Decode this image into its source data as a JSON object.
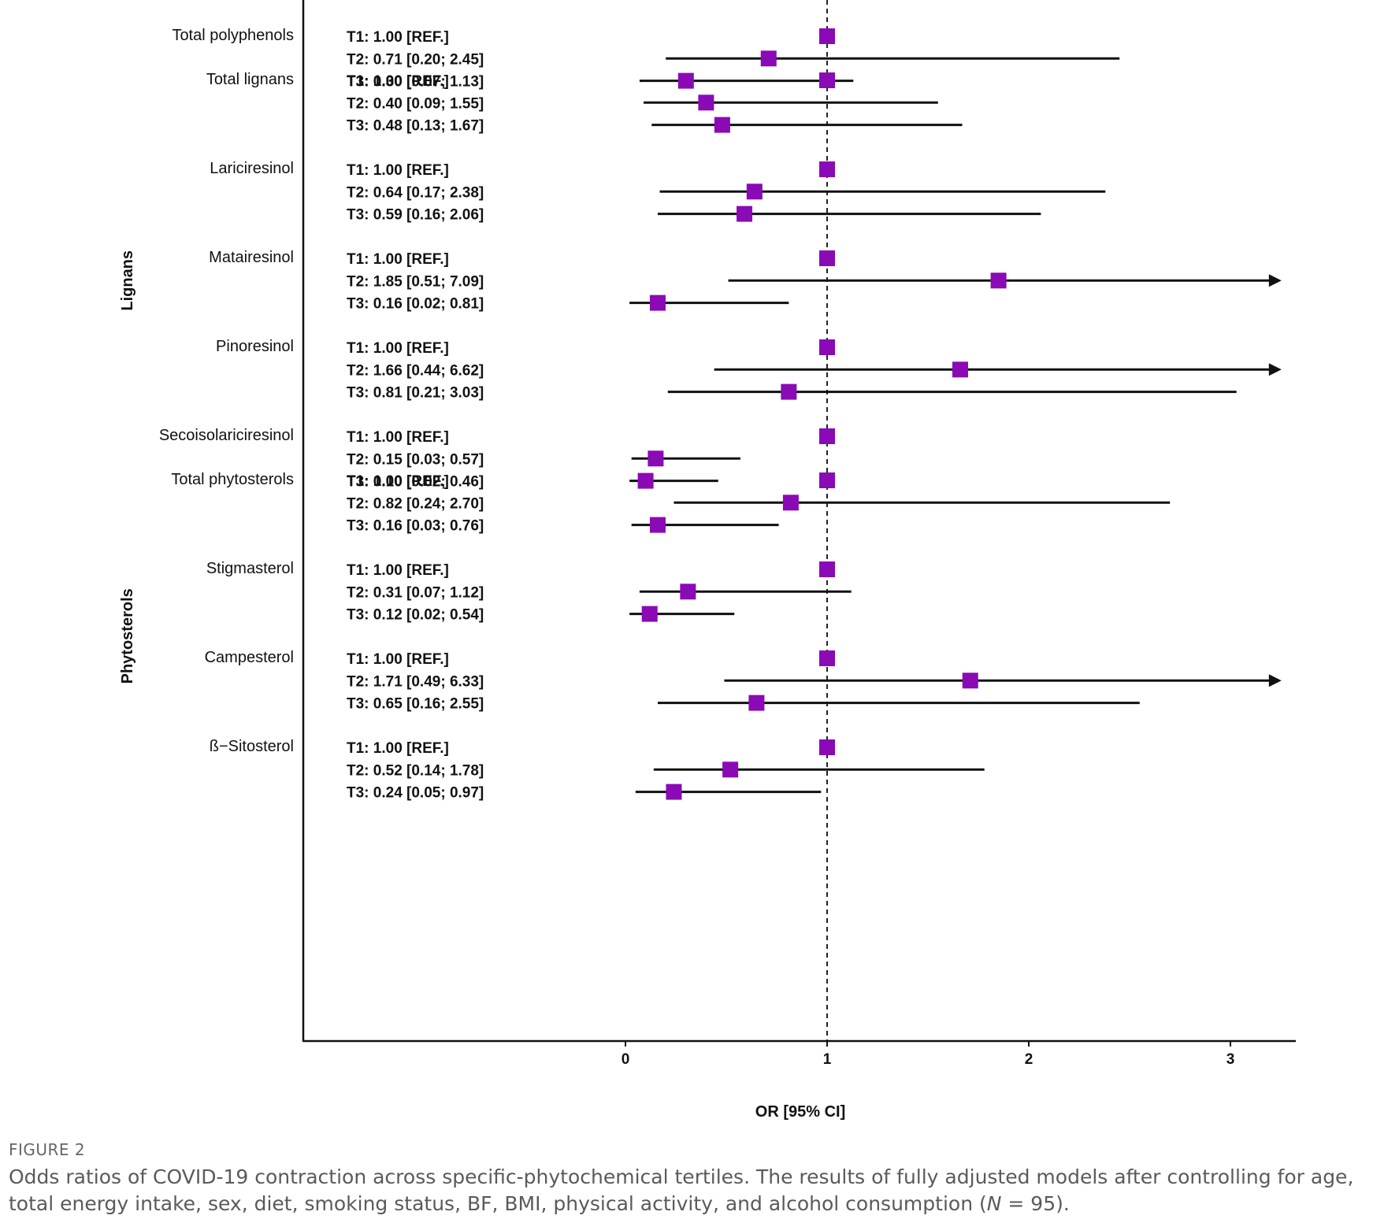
{
  "chart_data": {
    "type": "forest",
    "xlabel": "OR [95% CI]",
    "x_ticks": [
      0,
      1,
      2,
      3
    ],
    "xlim": [
      -1.6,
      3.3
    ],
    "reference_line": 1,
    "point_color": "#8a0ab5",
    "groups": [
      {
        "label": "",
        "items": [
          {
            "name": "Total polyphenols",
            "rows": [
              {
                "label": "T1: 1.00 [REF.]",
                "or": 1.0,
                "lo": null,
                "hi": null
              },
              {
                "label": "T2: 0.71 [0.20; 2.45]",
                "or": 0.71,
                "lo": 0.2,
                "hi": 2.45
              },
              {
                "label": "T3: 0.30 [0.07; 1.13]",
                "or": 0.3,
                "lo": 0.07,
                "hi": 1.13
              }
            ]
          }
        ]
      },
      {
        "label": "Lignans",
        "items": [
          {
            "name": "Total lignans",
            "rows": [
              {
                "label": "T1: 1.00 [REF.]",
                "or": 1.0,
                "lo": null,
                "hi": null
              },
              {
                "label": "T2: 0.40 [0.09; 1.55]",
                "or": 0.4,
                "lo": 0.09,
                "hi": 1.55
              },
              {
                "label": "T3: 0.48 [0.13; 1.67]",
                "or": 0.48,
                "lo": 0.13,
                "hi": 1.67
              }
            ]
          },
          {
            "name": "Lariciresinol",
            "rows": [
              {
                "label": "T1: 1.00 [REF.]",
                "or": 1.0,
                "lo": null,
                "hi": null
              },
              {
                "label": "T2: 0.64 [0.17; 2.38]",
                "or": 0.64,
                "lo": 0.17,
                "hi": 2.38
              },
              {
                "label": "T3: 0.59 [0.16; 2.06]",
                "or": 0.59,
                "lo": 0.16,
                "hi": 2.06
              }
            ]
          },
          {
            "name": "Matairesinol",
            "rows": [
              {
                "label": "T1: 1.00 [REF.]",
                "or": 1.0,
                "lo": null,
                "hi": null
              },
              {
                "label": "T2: 1.85 [0.51; 7.09]",
                "or": 1.85,
                "lo": 0.51,
                "hi": 7.09
              },
              {
                "label": "T3: 0.16 [0.02; 0.81]",
                "or": 0.16,
                "lo": 0.02,
                "hi": 0.81
              }
            ]
          },
          {
            "name": "Pinoresinol",
            "rows": [
              {
                "label": "T1: 1.00 [REF.]",
                "or": 1.0,
                "lo": null,
                "hi": null
              },
              {
                "label": "T2: 1.66 [0.44; 6.62]",
                "or": 1.66,
                "lo": 0.44,
                "hi": 6.62
              },
              {
                "label": "T3: 0.81 [0.21; 3.03]",
                "or": 0.81,
                "lo": 0.21,
                "hi": 3.03
              }
            ]
          },
          {
            "name": "Secoisolariciresinol",
            "rows": [
              {
                "label": "T1: 1.00 [REF.]",
                "or": 1.0,
                "lo": null,
                "hi": null
              },
              {
                "label": "T2: 0.15 [0.03; 0.57]",
                "or": 0.15,
                "lo": 0.03,
                "hi": 0.57
              },
              {
                "label": "T3: 0.10 [0.02; 0.46]",
                "or": 0.1,
                "lo": 0.02,
                "hi": 0.46
              }
            ]
          }
        ]
      },
      {
        "label": "Phytosterols",
        "items": [
          {
            "name": "Total phytosterols",
            "rows": [
              {
                "label": "T1: 1.00 [REF.]",
                "or": 1.0,
                "lo": null,
                "hi": null
              },
              {
                "label": "T2: 0.82 [0.24; 2.70]",
                "or": 0.82,
                "lo": 0.24,
                "hi": 2.7
              },
              {
                "label": "T3: 0.16 [0.03; 0.76]",
                "or": 0.16,
                "lo": 0.03,
                "hi": 0.76
              }
            ]
          },
          {
            "name": "Stigmasterol",
            "rows": [
              {
                "label": "T1: 1.00 [REF.]",
                "or": 1.0,
                "lo": null,
                "hi": null
              },
              {
                "label": "T2: 0.31 [0.07; 1.12]",
                "or": 0.31,
                "lo": 0.07,
                "hi": 1.12
              },
              {
                "label": "T3: 0.12 [0.02; 0.54]",
                "or": 0.12,
                "lo": 0.02,
                "hi": 0.54
              }
            ]
          },
          {
            "name": "Campesterol",
            "rows": [
              {
                "label": "T1: 1.00 [REF.]",
                "or": 1.0,
                "lo": null,
                "hi": null
              },
              {
                "label": "T2: 1.71 [0.49; 6.33]",
                "or": 1.71,
                "lo": 0.49,
                "hi": 6.33
              },
              {
                "label": "T3: 0.65 [0.16; 2.55]",
                "or": 0.65,
                "lo": 0.16,
                "hi": 2.55
              }
            ]
          },
          {
            "name": "ß−Sitosterol",
            "rows": [
              {
                "label": "T1: 1.00 [REF.]",
                "or": 1.0,
                "lo": null,
                "hi": null
              },
              {
                "label": "T2: 0.52 [0.14; 1.78]",
                "or": 0.52,
                "lo": 0.14,
                "hi": 1.78
              },
              {
                "label": "T3: 0.24 [0.05; 0.97]",
                "or": 0.24,
                "lo": 0.05,
                "hi": 0.97
              }
            ]
          }
        ]
      }
    ]
  },
  "figure": {
    "label": "FIGURE 2",
    "caption_main": "Odds ratios of COVID-19 contraction across specific-phytochemical tertiles. The results of fully adjusted models after controlling for age, total energy intake, sex, diet, smoking status, BF, BMI, physical activity, and alcohol consumption (",
    "caption_n": "N",
    "caption_end": " = 95)."
  }
}
